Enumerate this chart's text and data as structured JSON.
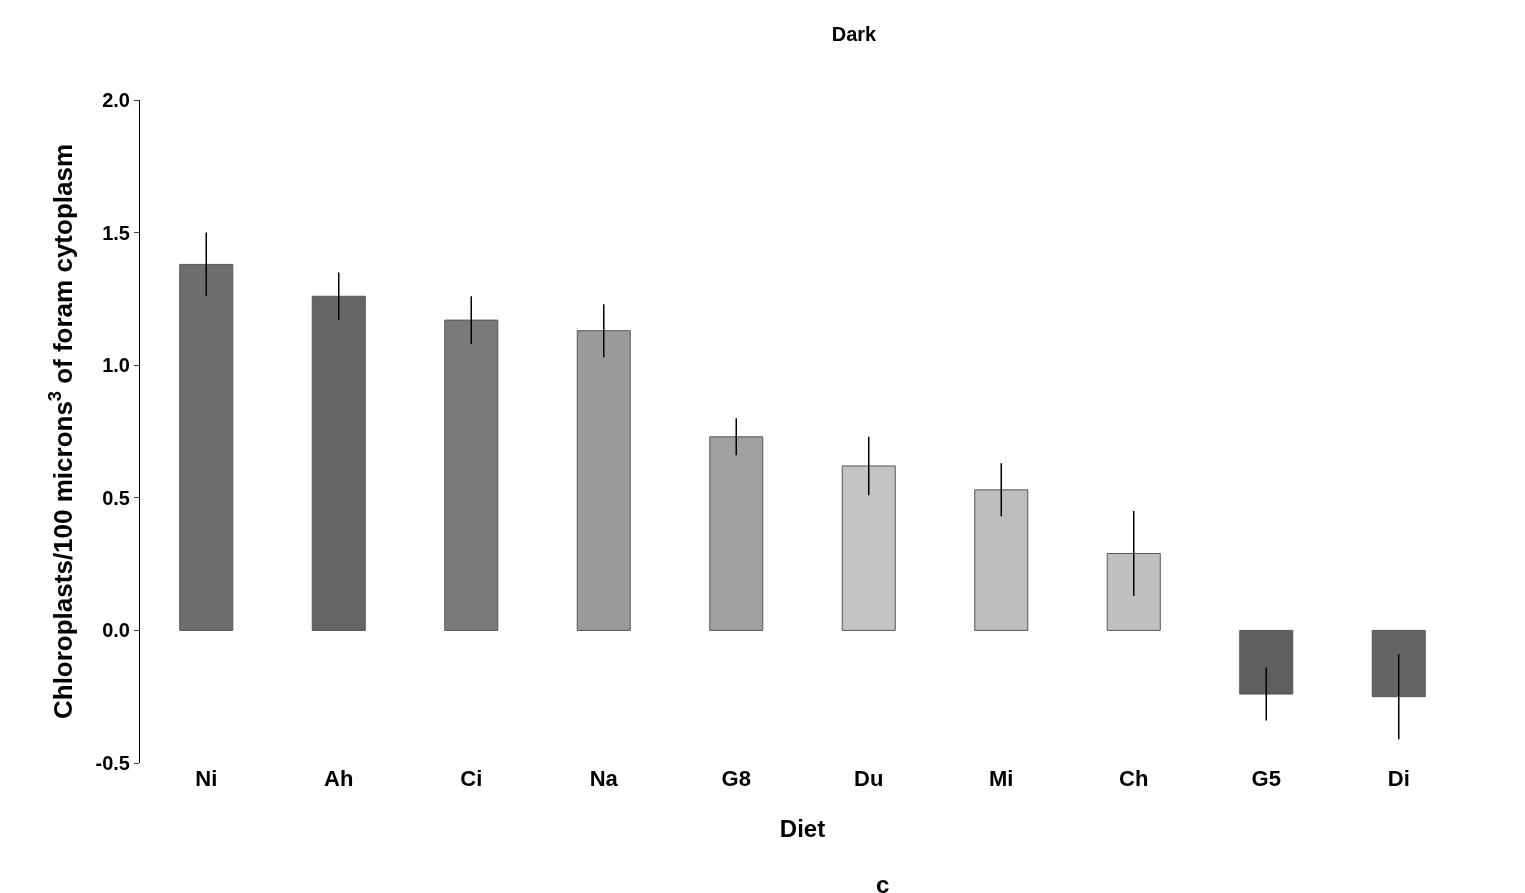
{
  "chart_data": {
    "type": "bar",
    "title": "Dark",
    "xlabel": "Diet",
    "ylabel": "Chloroplasts/100 microns$^{3}$ of foram cytoplasm",
    "categories": [
      "Ni",
      "Ah",
      "Ci",
      "Na",
      "G8",
      "Du",
      "Mi",
      "Ch",
      "G5",
      "Di"
    ],
    "values": [
      1.38,
      1.26,
      1.17,
      1.13,
      0.73,
      0.62,
      0.53,
      0.29,
      -0.24,
      -0.25
    ],
    "errors": [
      0.12,
      0.09,
      0.09,
      0.1,
      0.07,
      0.11,
      0.1,
      0.16,
      0.1,
      0.16
    ],
    "colors": [
      "#6e6e6e",
      "#656565",
      "#7a7a7a",
      "#9a9a9a",
      "#a0a0a0",
      "#c4c4c4",
      "#bdbdbd",
      "#c0c0c0",
      "#5e5e5e",
      "#646464"
    ],
    "ylim": [
      -0.5,
      2.0
    ],
    "yticks": [
      -0.5,
      {
        "value": 0,
        "label": "0.0"
      },
      0.5,
      {
        "value": 1,
        "label": "1.0"
      },
      1.5,
      {
        "value": 2,
        "label": "2.0"
      }
    ],
    "annotations": [
      "c"
    ]
  }
}
